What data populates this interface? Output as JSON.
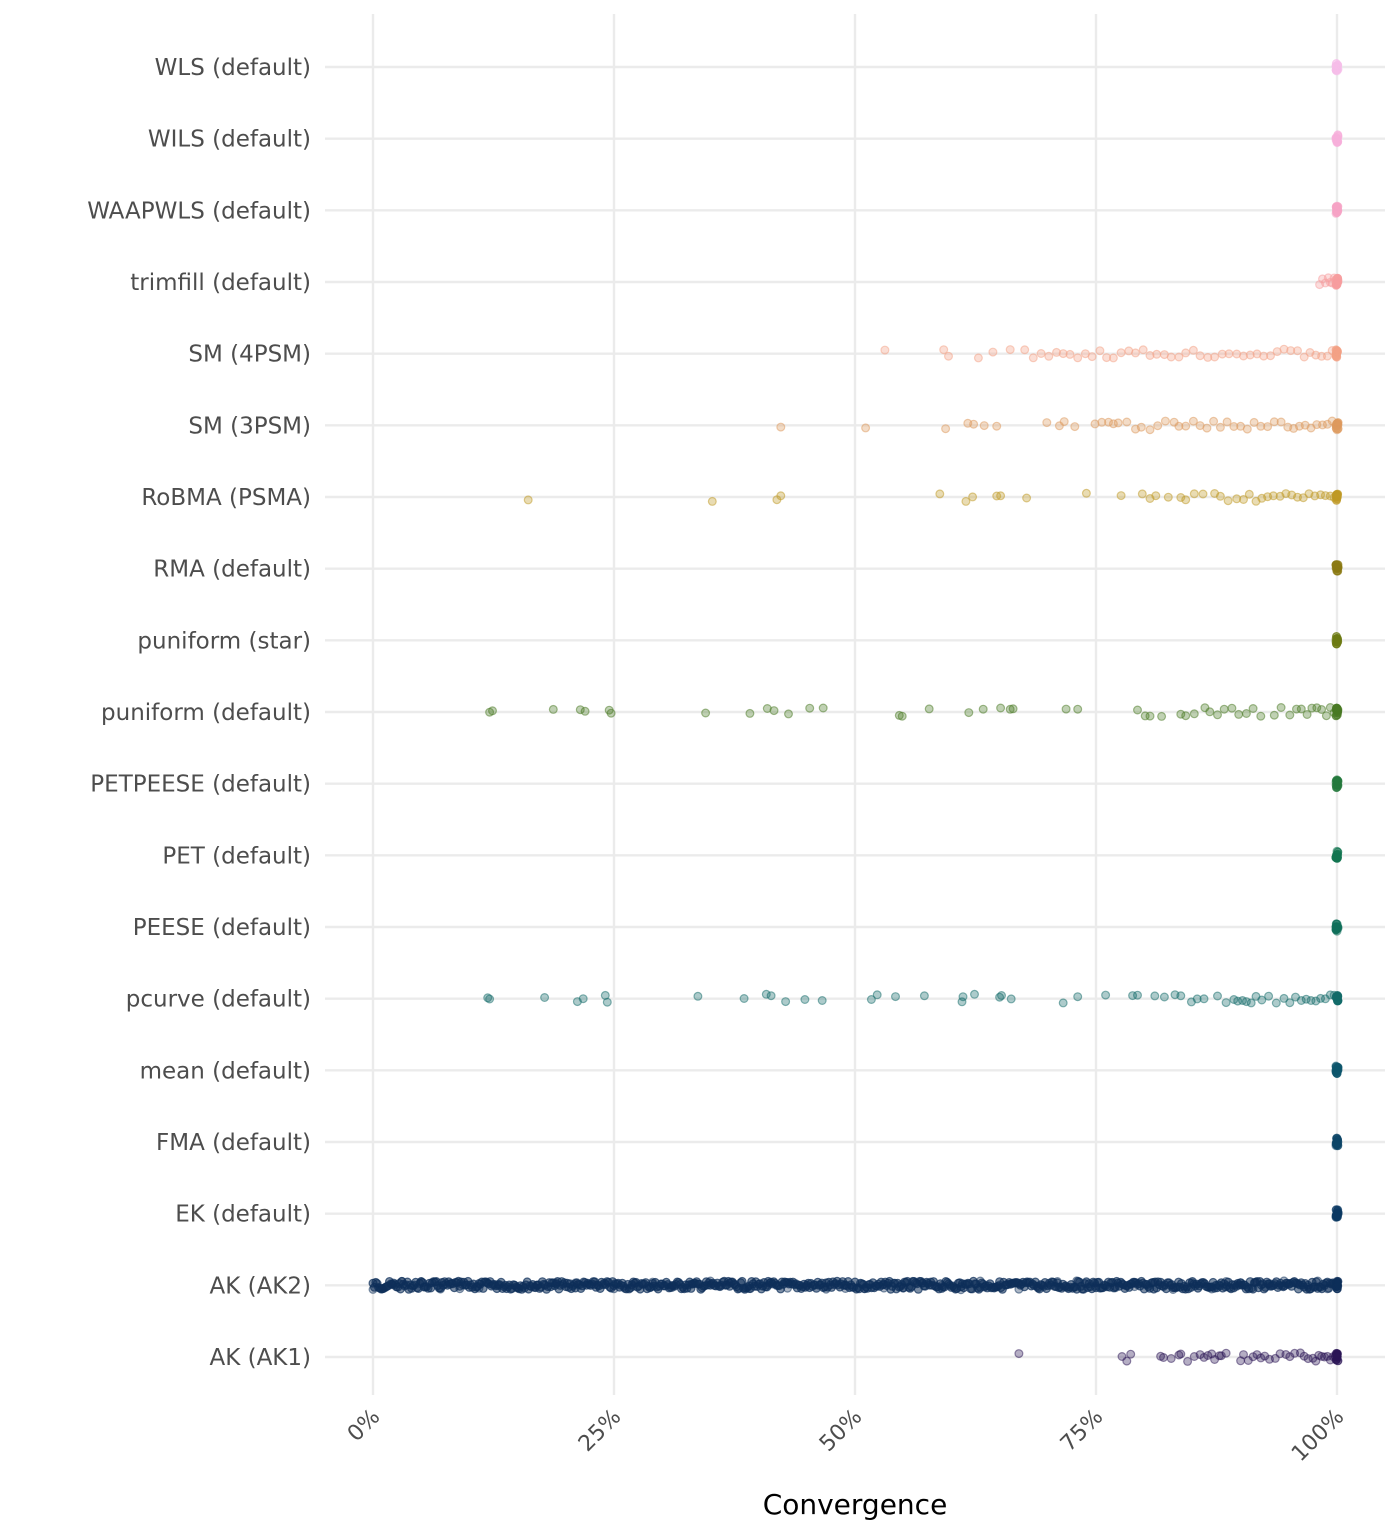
{
  "chart_data": {
    "type": "scatter",
    "title": "",
    "xlabel": "Convergence",
    "ylabel": "",
    "xlim": [
      0,
      1
    ],
    "x_ticks": [
      0,
      0.25,
      0.5,
      0.75,
      1
    ],
    "x_tick_labels": [
      "0%",
      "25%",
      "50%",
      "75%",
      "100%"
    ],
    "grid": true,
    "legend": "none",
    "categories": [
      "AK (AK1)",
      "AK (AK2)",
      "EK (default)",
      "FMA (default)",
      "mean (default)",
      "pcurve (default)",
      "PEESE (default)",
      "PET (default)",
      "PETPEESE (default)",
      "puniform (default)",
      "puniform (star)",
      "RMA (default)",
      "RoBMA (PSMA)",
      "SM (3PSM)",
      "SM (4PSM)",
      "trimfill (default)",
      "WAAPWLS (default)",
      "WILS (default)",
      "WLS (default)"
    ],
    "series": [
      {
        "category": "AK (AK1)",
        "color": "#2b1656",
        "points": [
          0.67,
          0.777,
          0.782,
          0.786,
          0.817,
          0.82,
          0.828,
          0.836,
          0.838,
          0.845,
          0.852,
          0.858,
          0.862,
          0.866,
          0.87,
          0.873,
          0.878,
          0.88,
          0.885,
          0.9,
          0.903,
          0.908,
          0.913,
          0.917,
          0.921,
          0.925,
          0.93,
          0.936,
          0.941,
          0.947,
          0.951,
          0.956,
          0.962,
          0.966,
          0.97,
          0.975,
          0.978,
          0.981,
          0.984,
          0.987,
          0.99,
          0.993,
          0.996,
          0.998,
          1.0
        ]
      },
      {
        "category": "AK (AK2)",
        "color": "#0e2f5a",
        "points": [
          0.0,
          0.01,
          0.02,
          0.03,
          0.05,
          0.07,
          0.09,
          0.11,
          0.13,
          0.15,
          0.17,
          0.19,
          0.21,
          0.23,
          0.25,
          0.27,
          0.29,
          0.31,
          0.33,
          0.35,
          0.37,
          0.39,
          0.41,
          0.43,
          0.45,
          0.47,
          0.49,
          0.51,
          0.53,
          0.55,
          0.57,
          0.59,
          0.61,
          0.63,
          0.65,
          0.67,
          0.69,
          0.71,
          0.73,
          0.75,
          0.77,
          0.79,
          0.81,
          0.83,
          0.85,
          0.87,
          0.885,
          0.9,
          0.915,
          0.93,
          0.945,
          0.96,
          0.97,
          0.98,
          0.99,
          1.0
        ],
        "dense_range": [
          0.0,
          1.0
        ]
      },
      {
        "category": "EK (default)",
        "color": "#0c3963",
        "points": [
          0.999,
          1.0
        ]
      },
      {
        "category": "FMA (default)",
        "color": "#0d4667",
        "points": [
          0.999,
          1.0
        ]
      },
      {
        "category": "mean (default)",
        "color": "#0e566c",
        "points": [
          0.999,
          1.0
        ]
      },
      {
        "category": "pcurve (default)",
        "color": "#136b69",
        "points": [
          0.119,
          0.121,
          0.178,
          0.212,
          0.218,
          0.241,
          0.243,
          0.337,
          0.385,
          0.408,
          0.413,
          0.428,
          0.448,
          0.466,
          0.517,
          0.523,
          0.542,
          0.572,
          0.611,
          0.612,
          0.624,
          0.65,
          0.652,
          0.662,
          0.716,
          0.731,
          0.76,
          0.788,
          0.793,
          0.811,
          0.821,
          0.832,
          0.838,
          0.849,
          0.855,
          0.862,
          0.876,
          0.885,
          0.893,
          0.897,
          0.902,
          0.906,
          0.911,
          0.916,
          0.922,
          0.929,
          0.937,
          0.945,
          0.951,
          0.957,
          0.963,
          0.968,
          0.973,
          0.978,
          0.983,
          0.988,
          0.993,
          0.997,
          1.0
        ]
      },
      {
        "category": "PEESE (default)",
        "color": "#11705b",
        "points": [
          0.999,
          1.0
        ]
      },
      {
        "category": "PET (default)",
        "color": "#137651",
        "points": [
          0.999,
          1.0
        ]
      },
      {
        "category": "PETPEESE (default)",
        "color": "#257a3e",
        "points": [
          0.999,
          1.0
        ]
      },
      {
        "category": "puniform (default)",
        "color": "#4a7a24",
        "points": [
          0.121,
          0.124,
          0.187,
          0.215,
          0.22,
          0.245,
          0.247,
          0.345,
          0.391,
          0.409,
          0.416,
          0.431,
          0.453,
          0.467,
          0.546,
          0.549,
          0.577,
          0.618,
          0.633,
          0.651,
          0.661,
          0.664,
          0.719,
          0.731,
          0.793,
          0.801,
          0.806,
          0.818,
          0.838,
          0.843,
          0.852,
          0.863,
          0.868,
          0.876,
          0.883,
          0.891,
          0.898,
          0.906,
          0.913,
          0.921,
          0.935,
          0.942,
          0.951,
          0.958,
          0.963,
          0.969,
          0.974,
          0.979,
          0.984,
          0.989,
          0.993,
          0.997,
          1.0
        ]
      },
      {
        "category": "puniform (star)",
        "color": "#6e7b14",
        "points": [
          0.999,
          1.0
        ]
      },
      {
        "category": "RMA (default)",
        "color": "#8b7a13",
        "points": [
          0.999,
          1.0
        ]
      },
      {
        "category": "RoBMA (PSMA)",
        "color": "#bf9a26",
        "points": [
          0.161,
          0.352,
          0.419,
          0.423,
          0.588,
          0.615,
          0.622,
          0.647,
          0.651,
          0.678,
          0.74,
          0.776,
          0.798,
          0.806,
          0.812,
          0.825,
          0.838,
          0.843,
          0.852,
          0.861,
          0.873,
          0.879,
          0.887,
          0.896,
          0.903,
          0.909,
          0.916,
          0.922,
          0.928,
          0.934,
          0.941,
          0.947,
          0.953,
          0.959,
          0.965,
          0.971,
          0.977,
          0.983,
          0.988,
          0.993,
          0.997,
          1.0
        ]
      },
      {
        "category": "SM (3PSM)",
        "color": "#de9a5e",
        "points": [
          0.423,
          0.511,
          0.594,
          0.617,
          0.623,
          0.634,
          0.647,
          0.699,
          0.712,
          0.717,
          0.728,
          0.749,
          0.756,
          0.763,
          0.768,
          0.773,
          0.782,
          0.791,
          0.797,
          0.806,
          0.814,
          0.822,
          0.831,
          0.836,
          0.843,
          0.851,
          0.858,
          0.865,
          0.872,
          0.879,
          0.886,
          0.893,
          0.9,
          0.907,
          0.914,
          0.921,
          0.928,
          0.935,
          0.942,
          0.949,
          0.955,
          0.961,
          0.967,
          0.973,
          0.979,
          0.985,
          0.99,
          0.995,
          1.0
        ]
      },
      {
        "category": "SM (4PSM)",
        "color": "#f3a186",
        "points": [
          0.531,
          0.592,
          0.597,
          0.628,
          0.643,
          0.661,
          0.676,
          0.685,
          0.693,
          0.701,
          0.709,
          0.716,
          0.723,
          0.731,
          0.739,
          0.746,
          0.754,
          0.761,
          0.768,
          0.776,
          0.784,
          0.791,
          0.799,
          0.806,
          0.813,
          0.821,
          0.828,
          0.836,
          0.843,
          0.851,
          0.858,
          0.866,
          0.873,
          0.881,
          0.888,
          0.896,
          0.903,
          0.91,
          0.917,
          0.924,
          0.931,
          0.938,
          0.945,
          0.952,
          0.959,
          0.966,
          0.972,
          0.978,
          0.984,
          0.99,
          0.995,
          1.0
        ]
      },
      {
        "category": "trimfill (default)",
        "color": "#f79d9f",
        "points": [
          0.982,
          0.985,
          0.988,
          0.991,
          0.993,
          0.995,
          0.997,
          0.999,
          1.0
        ]
      },
      {
        "category": "WAAPWLS (default)",
        "color": "#f6a4c5",
        "points": [
          0.999,
          1.0
        ]
      },
      {
        "category": "WILS (default)",
        "color": "#f7afdb",
        "points": [
          0.999,
          1.0
        ]
      },
      {
        "category": "WLS (default)",
        "color": "#f6bde9",
        "points": [
          0.999,
          1.0
        ]
      }
    ]
  }
}
